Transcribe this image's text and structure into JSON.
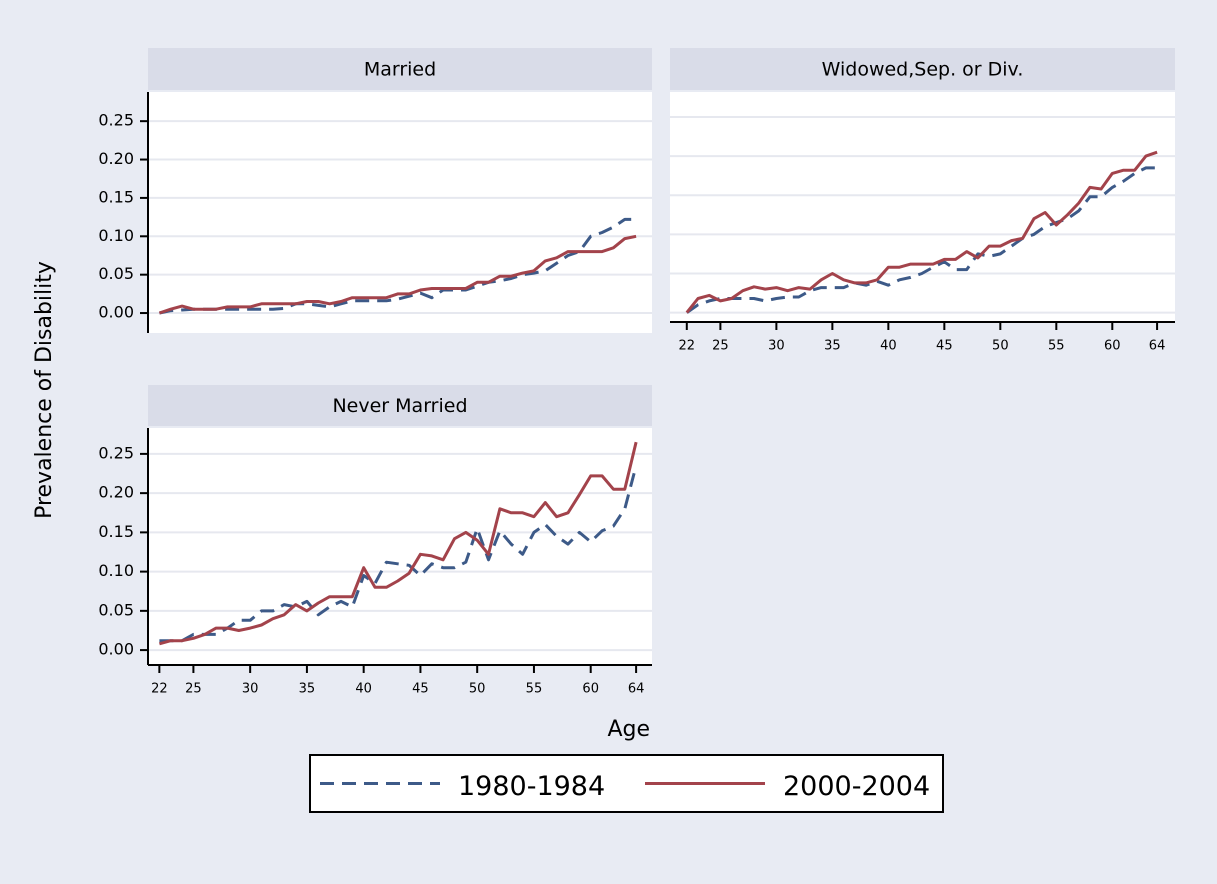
{
  "shared": {
    "ylabel": "Prevalence of Disability",
    "xlabel": "Age",
    "legend": "bottom"
  },
  "chart_data": [
    {
      "type": "line",
      "title": "Married",
      "x": [
        22,
        23,
        24,
        25,
        26,
        27,
        28,
        29,
        30,
        31,
        32,
        33,
        34,
        35,
        36,
        37,
        38,
        39,
        40,
        41,
        42,
        43,
        44,
        45,
        46,
        47,
        48,
        49,
        50,
        51,
        52,
        53,
        54,
        55,
        56,
        57,
        58,
        59,
        60,
        61,
        62,
        63,
        64
      ],
      "series": [
        {
          "name": "1980-1984",
          "color": "#3d5a88",
          "dash": true,
          "values": [
            0.0,
            0.003,
            0.004,
            0.005,
            0.005,
            0.005,
            0.005,
            0.005,
            0.005,
            0.005,
            0.005,
            0.006,
            0.012,
            0.012,
            0.01,
            0.008,
            0.012,
            0.016,
            0.016,
            0.016,
            0.016,
            0.018,
            0.022,
            0.026,
            0.02,
            0.03,
            0.03,
            0.03,
            0.035,
            0.04,
            0.042,
            0.045,
            0.05,
            0.052,
            0.055,
            0.065,
            0.075,
            0.08,
            0.1,
            0.105,
            0.112,
            0.122,
            0.122
          ]
        },
        {
          "name": "2000-2004",
          "color": "#a3434b",
          "dash": false,
          "values": [
            0.0,
            0.005,
            0.009,
            0.005,
            0.005,
            0.005,
            0.008,
            0.008,
            0.008,
            0.012,
            0.012,
            0.012,
            0.012,
            0.015,
            0.015,
            0.012,
            0.015,
            0.02,
            0.02,
            0.02,
            0.02,
            0.025,
            0.025,
            0.03,
            0.032,
            0.032,
            0.032,
            0.032,
            0.04,
            0.04,
            0.048,
            0.048,
            0.052,
            0.055,
            0.068,
            0.072,
            0.08,
            0.08,
            0.08,
            0.08,
            0.085,
            0.097,
            0.1
          ]
        }
      ],
      "xlim": [
        21,
        65.4
      ],
      "ylim": [
        -0.026,
        0.288
      ],
      "yticks": [
        {
          "value": 0,
          "label": "0.00"
        },
        {
          "value": 0.05,
          "label": "0.05"
        },
        {
          "value": 0.1,
          "label": "0.10"
        },
        {
          "value": 0.15,
          "label": "0.15"
        },
        {
          "value": 0.2,
          "label": "0.20"
        },
        {
          "value": 0.25,
          "label": "0.25"
        }
      ],
      "grid": true
    },
    {
      "type": "line",
      "title": "Widowed,Sep. or Div.",
      "x": [
        22,
        23,
        24,
        25,
        26,
        27,
        28,
        29,
        30,
        31,
        32,
        33,
        34,
        35,
        36,
        37,
        38,
        39,
        40,
        41,
        42,
        43,
        44,
        45,
        46,
        47,
        48,
        49,
        50,
        51,
        52,
        53,
        54,
        55,
        56,
        57,
        58,
        59,
        60,
        61,
        62,
        63,
        64
      ],
      "series": [
        {
          "name": "1980-1984",
          "color": "#3d5a88",
          "dash": true,
          "values": [
            0.0,
            0.01,
            0.015,
            0.018,
            0.018,
            0.018,
            0.018,
            0.015,
            0.018,
            0.02,
            0.02,
            0.028,
            0.032,
            0.032,
            0.032,
            0.038,
            0.035,
            0.04,
            0.035,
            0.042,
            0.045,
            0.05,
            0.058,
            0.065,
            0.055,
            0.055,
            0.075,
            0.072,
            0.075,
            0.085,
            0.095,
            0.1,
            0.11,
            0.115,
            0.12,
            0.13,
            0.148,
            0.148,
            0.16,
            0.168,
            0.178,
            0.185,
            0.185
          ]
        },
        {
          "name": "2000-2004",
          "color": "#a3434b",
          "dash": false,
          "values": [
            0.0,
            0.018,
            0.022,
            0.015,
            0.018,
            0.028,
            0.033,
            0.03,
            0.032,
            0.028,
            0.032,
            0.03,
            0.042,
            0.05,
            0.042,
            0.038,
            0.038,
            0.042,
            0.058,
            0.058,
            0.062,
            0.062,
            0.062,
            0.068,
            0.068,
            0.078,
            0.07,
            0.085,
            0.085,
            0.092,
            0.095,
            0.12,
            0.128,
            0.112,
            0.125,
            0.14,
            0.16,
            0.158,
            0.178,
            0.182,
            0.182,
            0.2,
            0.205
          ]
        }
      ],
      "xlim": [
        20.5,
        65.6
      ],
      "ylim": [
        -0.012,
        0.282
      ],
      "xticks": [
        22,
        25,
        30,
        35,
        40,
        45,
        50,
        55,
        60,
        64
      ],
      "yticks": [
        {
          "value": 0,
          "label": "0.00"
        },
        {
          "value": 0.05,
          "label": "0.05"
        },
        {
          "value": 0.1,
          "label": "0.10"
        },
        {
          "value": 0.15,
          "label": "0.15"
        },
        {
          "value": 0.2,
          "label": "0.20"
        },
        {
          "value": 0.25,
          "label": "0.25"
        }
      ],
      "show_ytick_labels": false,
      "grid": true
    },
    {
      "type": "line",
      "title": "Never Married",
      "x": [
        22,
        23,
        24,
        25,
        26,
        27,
        28,
        29,
        30,
        31,
        32,
        33,
        34,
        35,
        36,
        37,
        38,
        39,
        40,
        41,
        42,
        43,
        44,
        45,
        46,
        47,
        48,
        49,
        50,
        51,
        52,
        53,
        54,
        55,
        56,
        57,
        58,
        59,
        60,
        61,
        62,
        63,
        64
      ],
      "series": [
        {
          "name": "1980-1984",
          "color": "#3d5a88",
          "dash": true,
          "values": [
            0.012,
            0.012,
            0.012,
            0.02,
            0.02,
            0.02,
            0.028,
            0.038,
            0.038,
            0.05,
            0.05,
            0.058,
            0.055,
            0.062,
            0.045,
            0.055,
            0.062,
            0.055,
            0.095,
            0.085,
            0.112,
            0.11,
            0.108,
            0.095,
            0.11,
            0.105,
            0.105,
            0.112,
            0.155,
            0.115,
            0.152,
            0.135,
            0.122,
            0.15,
            0.16,
            0.145,
            0.135,
            0.15,
            0.138,
            0.152,
            0.158,
            0.18,
            0.235
          ]
        },
        {
          "name": "2000-2004",
          "color": "#a3434b",
          "dash": false,
          "values": [
            0.008,
            0.012,
            0.012,
            0.015,
            0.02,
            0.028,
            0.028,
            0.025,
            0.028,
            0.032,
            0.04,
            0.045,
            0.058,
            0.05,
            0.06,
            0.068,
            0.068,
            0.068,
            0.105,
            0.08,
            0.08,
            0.088,
            0.098,
            0.122,
            0.12,
            0.115,
            0.142,
            0.15,
            0.14,
            0.122,
            0.18,
            0.175,
            0.175,
            0.17,
            0.188,
            0.17,
            0.175,
            0.198,
            0.222,
            0.222,
            0.205,
            0.205,
            0.265
          ]
        }
      ],
      "xlim": [
        21,
        65.4
      ],
      "ylim": [
        -0.019,
        0.283
      ],
      "xticks": [
        22,
        25,
        30,
        35,
        40,
        45,
        50,
        55,
        60,
        64
      ],
      "yticks": [
        {
          "value": 0,
          "label": "0.00"
        },
        {
          "value": 0.05,
          "label": "0.05"
        },
        {
          "value": 0.1,
          "label": "0.10"
        },
        {
          "value": 0.15,
          "label": "0.15"
        },
        {
          "value": 0.2,
          "label": "0.20"
        },
        {
          "value": 0.25,
          "label": "0.25"
        }
      ],
      "grid": true
    }
  ]
}
